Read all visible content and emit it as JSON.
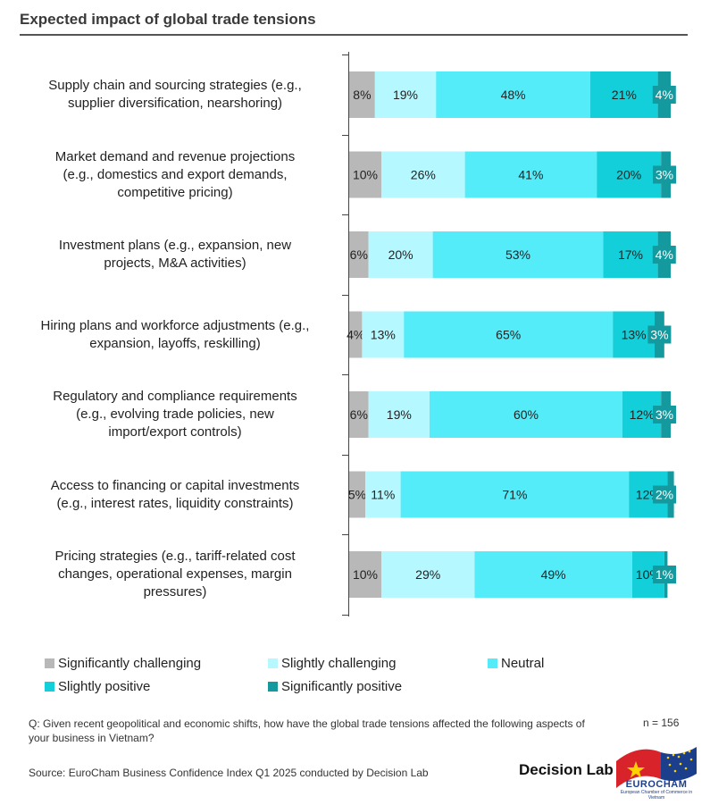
{
  "title": "Expected impact of global trade tensions",
  "chart_data": {
    "type": "bar",
    "orientation": "horizontal",
    "stacked": true,
    "categories": [
      "Supply chain and sourcing strategies (e.g., supplier diversification, nearshoring)",
      "Market demand and revenue projections (e.g., domestics and export demands, competitive pricing)",
      "Investment plans (e.g., expansion, new projects, M&A activities)",
      "Hiring plans and workforce adjustments (e.g., expansion, layoffs, reskilling)",
      "Regulatory and compliance requirements (e.g., evolving trade policies, new import/export controls)",
      "Access to financing or capital investments (e.g., interest rates, liquidity constraints)",
      "Pricing strategies (e.g., tariff-related cost changes, operational expenses, margin pressures)"
    ],
    "series": [
      {
        "name": "Significantly challenging",
        "color": "#b8b8b8",
        "values": [
          8,
          10,
          6,
          4,
          6,
          5,
          10
        ]
      },
      {
        "name": "Slightly challenging",
        "color": "#b6f8ff",
        "values": [
          19,
          26,
          20,
          13,
          19,
          11,
          29
        ]
      },
      {
        "name": "Neutral",
        "color": "#55ecfa",
        "values": [
          48,
          41,
          53,
          65,
          60,
          71,
          49
        ]
      },
      {
        "name": "Slightly positive",
        "color": "#12cfd9",
        "values": [
          21,
          20,
          17,
          13,
          12,
          12,
          10
        ]
      },
      {
        "name": "Significantly positive",
        "color": "#149a9e",
        "values": [
          4,
          3,
          4,
          3,
          3,
          2,
          1
        ]
      }
    ],
    "value_suffix": "%",
    "xlim": [
      0,
      100
    ]
  },
  "question": "Q: Given recent geopolitical and economic shifts, how have the global trade tensions affected the following aspects of your business in Vietnam?",
  "sample_size": "n = 156",
  "source": "Source: EuroCham Business Confidence Index Q1 2025 conducted by Decision Lab",
  "brand": "Decision Lab",
  "logo_text": "EUROCHAM",
  "logo_subtext": "European Chamber of Commerce in Vietnam"
}
